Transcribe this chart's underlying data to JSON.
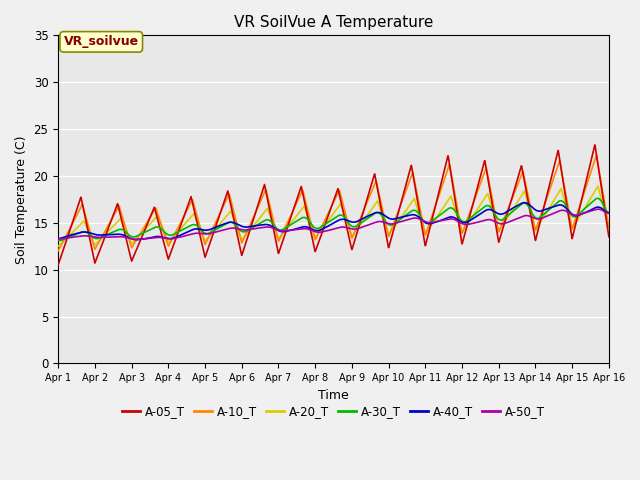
{
  "title": "VR SoilVue A Temperature",
  "xlabel": "Time",
  "ylabel": "Soil Temperature (C)",
  "ylim": [
    0,
    35
  ],
  "yticks": [
    0,
    5,
    10,
    15,
    20,
    25,
    30,
    35
  ],
  "fig_bg": "#f0f0f0",
  "plot_bg": "#e8e8e8",
  "series": {
    "A-05_T": {
      "color": "#cc0000",
      "linewidth": 1.2,
      "zorder": 5
    },
    "A-10_T": {
      "color": "#ff8800",
      "linewidth": 1.2,
      "zorder": 4
    },
    "A-20_T": {
      "color": "#ddcc00",
      "linewidth": 1.2,
      "zorder": 3
    },
    "A-30_T": {
      "color": "#00bb00",
      "linewidth": 1.2,
      "zorder": 6
    },
    "A-40_T": {
      "color": "#0000cc",
      "linewidth": 1.2,
      "zorder": 7
    },
    "A-50_T": {
      "color": "#aa00aa",
      "linewidth": 1.2,
      "zorder": 8
    }
  },
  "annotation_box": {
    "text": "VR_soilvue",
    "fontsize": 9,
    "bg": "#ffffcc",
    "edgecolor": "#888800",
    "textcolor": "#880000"
  },
  "num_days": 15,
  "samples_per_day": 144
}
